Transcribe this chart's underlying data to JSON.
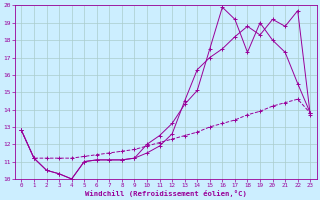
{
  "xlabel": "Windchill (Refroidissement éolien,°C)",
  "bg_color": "#cceeff",
  "line_color": "#990099",
  "grid_color": "#aacccc",
  "xlim": [
    -0.5,
    23.5
  ],
  "ylim": [
    10,
    20
  ],
  "yticks": [
    10,
    11,
    12,
    13,
    14,
    15,
    16,
    17,
    18,
    19,
    20
  ],
  "xticks": [
    0,
    1,
    2,
    3,
    4,
    5,
    6,
    7,
    8,
    9,
    10,
    11,
    12,
    13,
    14,
    15,
    16,
    17,
    18,
    19,
    20,
    21,
    22,
    23
  ],
  "line1_x": [
    0,
    1,
    2,
    3,
    4,
    5,
    6,
    7,
    8,
    9,
    10,
    11,
    12,
    13,
    14,
    15,
    16,
    17,
    18,
    19,
    20,
    21,
    22,
    23
  ],
  "line1_y": [
    12.8,
    11.2,
    10.5,
    10.3,
    10.0,
    11.0,
    11.1,
    11.1,
    11.1,
    11.2,
    12.0,
    12.5,
    13.2,
    14.3,
    15.1,
    17.5,
    19.9,
    19.2,
    17.3,
    19.0,
    18.0,
    17.3,
    15.5,
    13.8
  ],
  "line2_x": [
    0,
    1,
    2,
    3,
    4,
    5,
    6,
    7,
    8,
    9,
    10,
    11,
    12,
    13,
    14,
    15,
    16,
    17,
    18,
    19,
    20,
    21,
    22,
    23
  ],
  "line2_y": [
    12.8,
    11.2,
    10.5,
    10.3,
    10.0,
    11.0,
    11.1,
    11.1,
    11.1,
    11.2,
    11.5,
    11.9,
    12.6,
    14.5,
    16.3,
    17.0,
    17.5,
    18.2,
    18.8,
    18.3,
    19.2,
    18.8,
    19.7,
    13.7
  ],
  "line3_x": [
    0,
    1,
    2,
    3,
    4,
    5,
    6,
    7,
    8,
    9,
    10,
    11,
    12,
    13,
    14,
    15,
    16,
    17,
    18,
    19,
    20,
    21,
    22,
    23
  ],
  "line3_y": [
    12.8,
    11.2,
    11.2,
    11.2,
    11.2,
    11.3,
    11.4,
    11.5,
    11.6,
    11.7,
    11.9,
    12.1,
    12.3,
    12.5,
    12.7,
    13.0,
    13.2,
    13.4,
    13.7,
    13.9,
    14.2,
    14.4,
    14.6,
    13.8
  ]
}
